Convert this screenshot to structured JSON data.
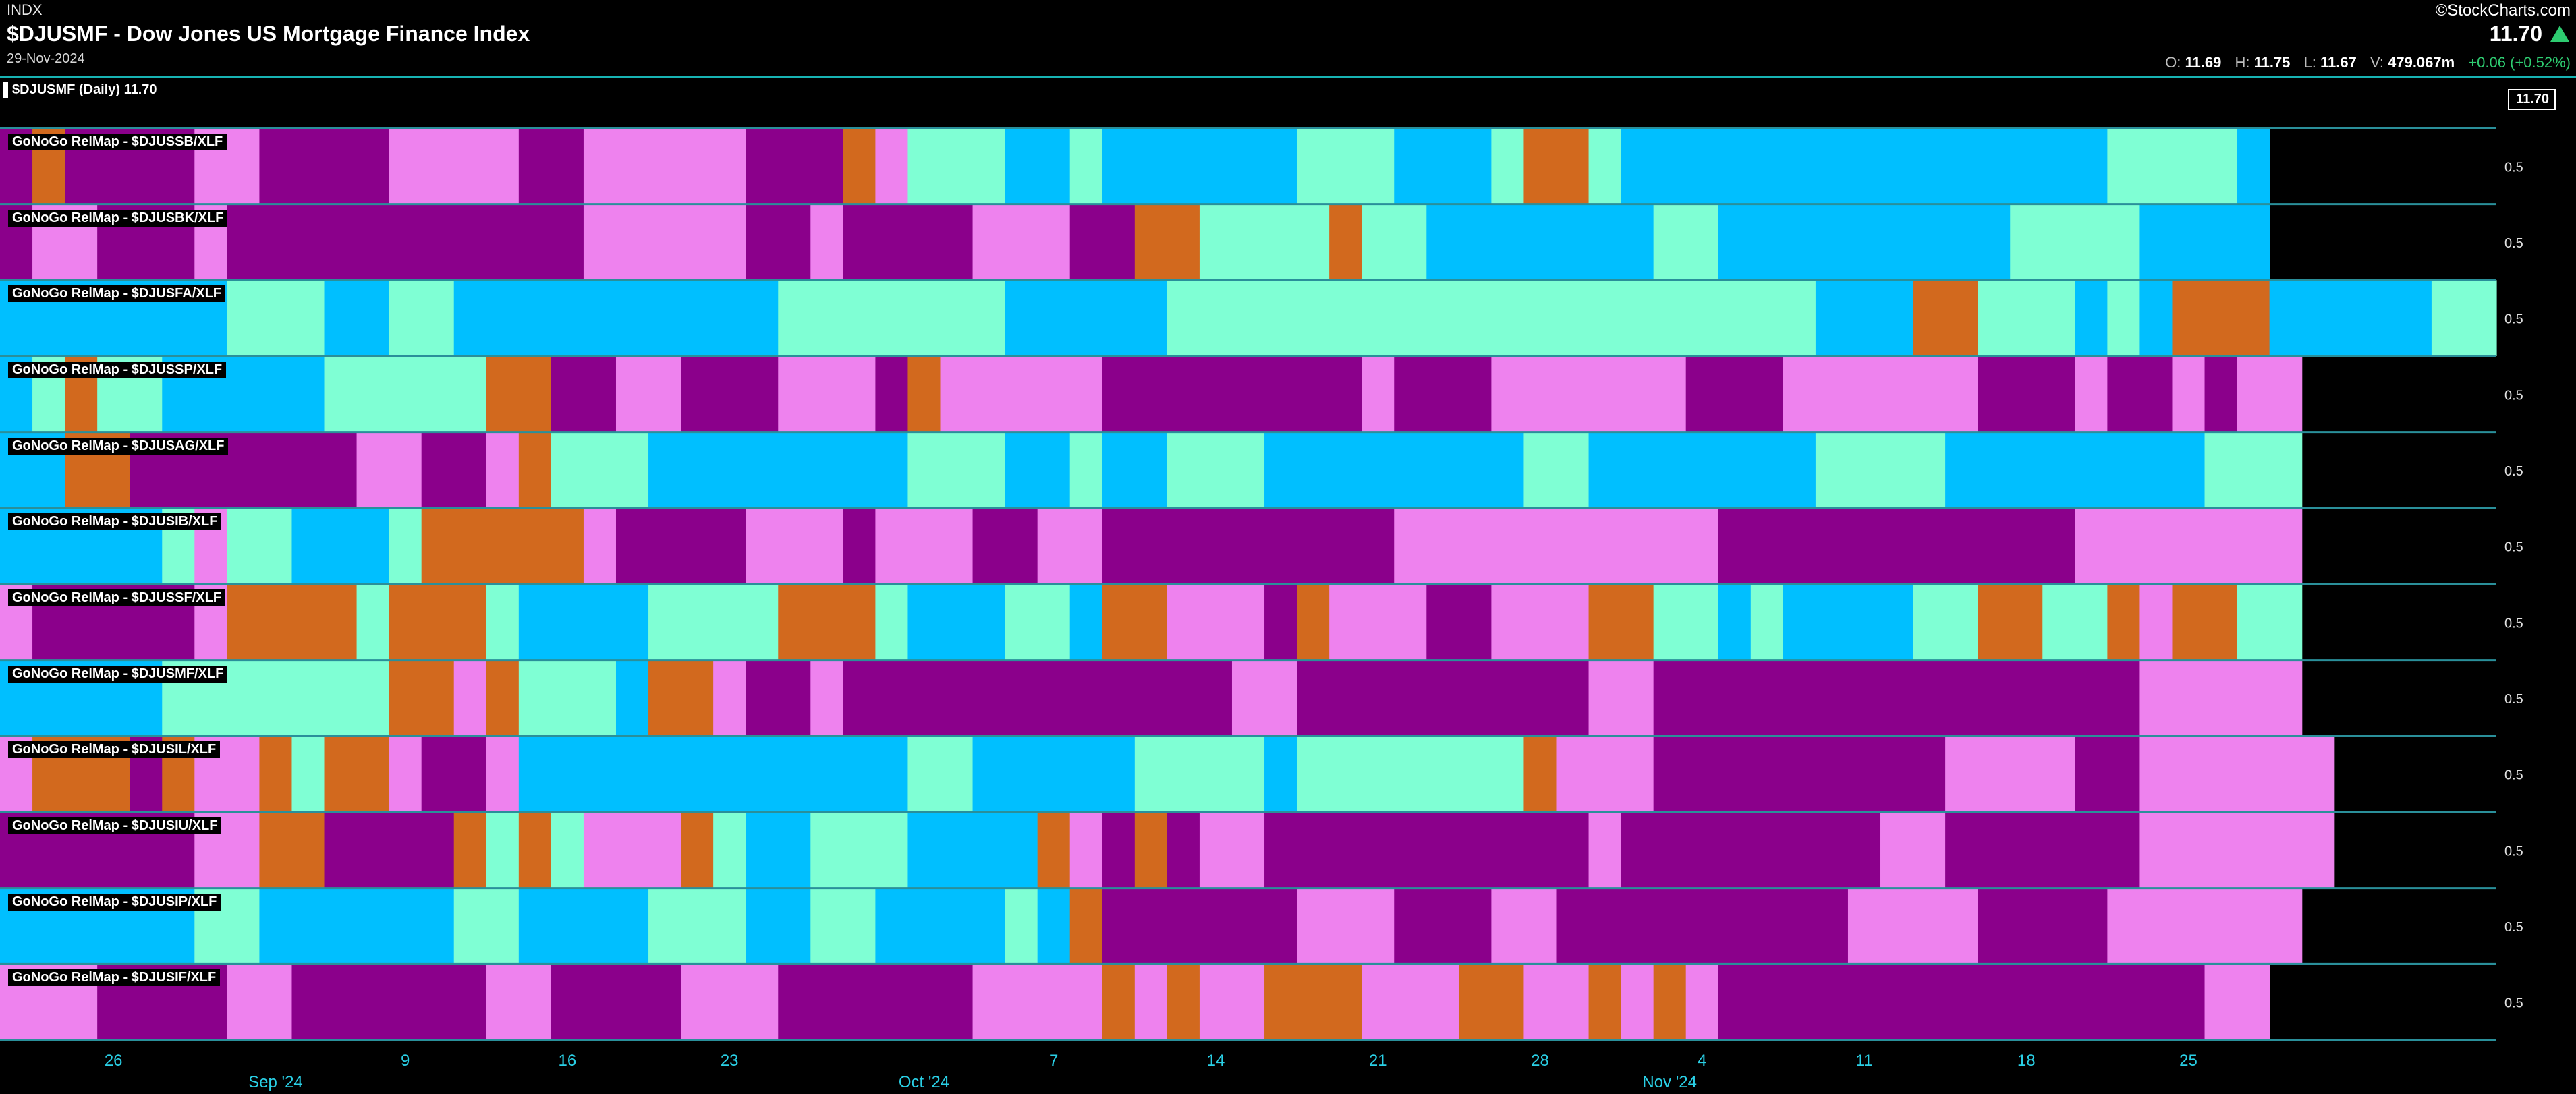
{
  "header": {
    "exchange": "INDX",
    "title": "$DJUSMF - Dow Jones US Mortgage Finance Index",
    "date": "29-Nov-2024",
    "brand": "©StockCharts.com",
    "price": "11.70",
    "ohlc": {
      "open_label": "O:",
      "open": "11.69",
      "high_label": "H:",
      "high": "11.75",
      "low_label": "L:",
      "low": "11.67",
      "volume_label": "V:",
      "volume": "479.067m",
      "change": "+0.06 (+0.52%)"
    },
    "legend": "$DJUSMF (Daily) 11.70",
    "price_tag": "11.70"
  },
  "colors": {
    "background": "#000000",
    "header_line": "#17b3b3",
    "up_arrow": "#2ecc71",
    "tick_text": "#2ad0e6",
    "row_separator": "#2a8f9a",
    "D": "#8b008b",
    "P": "#ee82ee",
    "O": "#d2691e",
    "A": "#7fffd4",
    "B": "#00bfff"
  },
  "chart_data": {
    "type": "heatmap",
    "encoding": "Each row is a GoNoGo RelMap; each letter is one trading day, colored per colors.D/P/O/A/B",
    "legend": [],
    "right_axis_value": "0.5",
    "x_ticks": [
      "26",
      "9",
      "16",
      "23",
      "7",
      "14",
      "21",
      "28",
      "4",
      "11",
      "18",
      "25"
    ],
    "x_tick_days": [
      3,
      12,
      17,
      22,
      32,
      37,
      42,
      47,
      52,
      57,
      62,
      67
    ],
    "month_labels": [
      "Sep '24",
      "Oct '24",
      "Nov '24"
    ],
    "month_days": [
      8,
      28,
      51
    ],
    "rows": [
      {
        "label": "GoNoGo RelMap - $DJUSSB/XLF",
        "days": "DODDDDPPDDDDPPPPDDPPPPPDDDOPAAABBABBBBBBAAABBBAOOABBBBBBBBBBBBBBBAAAAB"
      },
      {
        "label": "GoNoGo RelMap - $DJUSBK/XLF",
        "days": "DPPDDDPDDDDDDDDDDDPPPPPDDPDDDDPPPDDOOAAAAOAABBBBBBBAABBBBBBBBBAAAABBBB"
      },
      {
        "label": "GoNoGo RelMap - $DJUSFA/XLF",
        "days": "BBBBBBBAAABBAABBBBBBBBBBAAAAAAABBBBBAAAAAAAAAAAAAAAAAAAABBBOOAAABABOOOBBBBBAA"
      },
      {
        "label": "GoNoGo RelMap - $DJUSSP/XLF",
        "days": "BAOAABBBBBAAAAAOODDPPDDDPPPDOPPPPPDDDDDDDDPDDDPPPPPPDDDPPPPPPDDDPDDPDPP"
      },
      {
        "label": "GoNoGo RelMap - $DJUSAG/XLF",
        "days": "BBOODDDDDDDPPDDPOAAABBBBBBBBAAABBABBAAABBBBBBBBAABBBBBBBAAAABBBBBBBBAAA"
      },
      {
        "label": "GoNoGo RelMap - $DJUSIB/XLF",
        "days": "BBBBBAPAABBBAOOOOOPDDDDPPPDPPPDDPPDDDDDDDDDPPPPPPPPPPDDDDDDDDDDDPPPPPPP"
      },
      {
        "label": "GoNoGo RelMap - $DJUSSF/XLF",
        "days": "PDDDDDPOOOOAOOOABBBBAAAAOOOABBBAABOOPPPDOPPPDDPPPOOAABABBBBAAOOAAOPOOAA"
      },
      {
        "label": "GoNoGo RelMap - $DJUSMF/XLF",
        "days": "BBBBBAAAAAAAOOPOAAABOOPDDPDDDDDDDDDDDDPPDDDDDDDDDPPDDDDDDDDDDDDDDDPPPPP"
      },
      {
        "label": "GoNoGo RelMap - $DJUSIL/XLF",
        "days": "POOODOPPOAOOPDDPBBBBBBBBBBBBAABBBBBAAAABAAAAAAAOPPPDDDDDDDDDPPPPDDPPPPPP"
      },
      {
        "label": "GoNoGo RelMap - $DJUSIU/XLF",
        "days": "DDDDDDPPOODDDDOAOAPPPOABBAAABBBBOPDODPPDDDDDDDDDDPDDDDDDDDPPDDDDDDPPPPPP"
      },
      {
        "label": "GoNoGo RelMap - $DJUSIP/XLF",
        "days": "BBBBBBAABBBBBBAABBBBAAABBAABBBBABODDDDDDPPPDDDPPDDDDDDDDDPPPPDDDDPPPPPP"
      },
      {
        "label": "GoNoGo RelMap - $DJUSIF/XLF",
        "days": "PPPDDDDPPDDDDDDPPDDDDPPPDDDDDDPPPPOPOPPOOOPPPOOPPOPOPDDDDDDDDDDDDDDDPP"
      }
    ]
  }
}
